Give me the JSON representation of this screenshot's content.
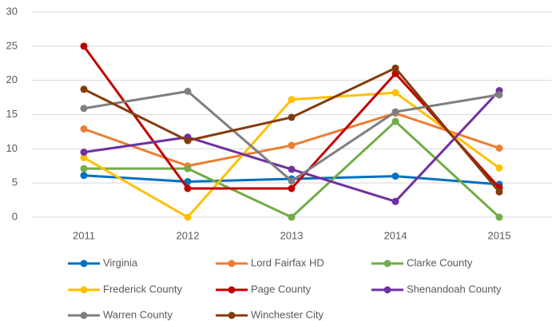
{
  "chart_data": {
    "type": "line",
    "categories": [
      "2011",
      "2012",
      "2013",
      "2014",
      "2015"
    ],
    "series": [
      {
        "name": "Virginia",
        "color": "#0070c0",
        "values": [
          6.1,
          5.2,
          5.6,
          6.0,
          4.8
        ]
      },
      {
        "name": "Lord Fairfax HD",
        "color": "#ed7d31",
        "values": [
          12.9,
          7.5,
          10.5,
          15.2,
          10.1
        ]
      },
      {
        "name": "Clarke County",
        "color": "#70ad47",
        "values": [
          7.1,
          7.1,
          0,
          14.0,
          0
        ]
      },
      {
        "name": "Frederick County",
        "color": "#ffc000",
        "values": [
          8.7,
          0,
          17.2,
          18.2,
          7.2
        ]
      },
      {
        "name": "Page County",
        "color": "#c00000",
        "values": [
          25.0,
          4.2,
          4.2,
          21.0,
          4.3
        ]
      },
      {
        "name": "Shenandoah County",
        "color": "#7030a0",
        "values": [
          9.5,
          11.7,
          7.0,
          2.3,
          18.5
        ]
      },
      {
        "name": "Warren County",
        "color": "#7f7f7f",
        "values": [
          15.9,
          18.4,
          5.3,
          15.4,
          17.9
        ]
      },
      {
        "name": "Winchester City",
        "color": "#843c0c",
        "values": [
          18.7,
          11.2,
          14.6,
          21.8,
          3.7
        ]
      }
    ],
    "ylim": [
      0,
      30
    ],
    "yticks": [
      0,
      5,
      10,
      15,
      20,
      25,
      30
    ],
    "grid": true,
    "legend": "bottom"
  }
}
